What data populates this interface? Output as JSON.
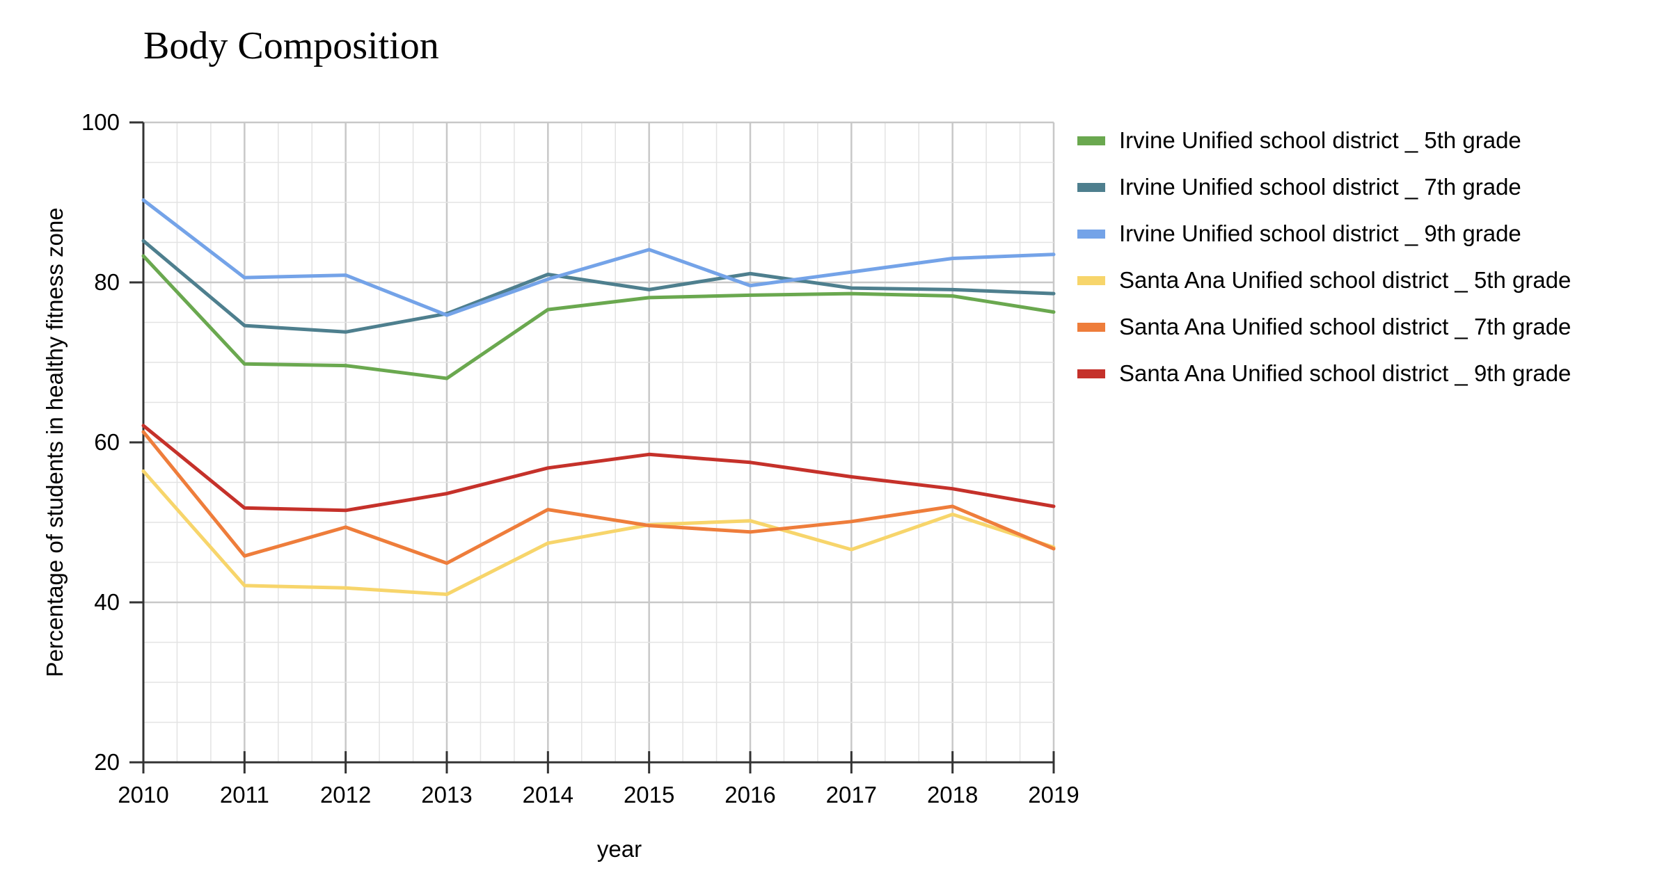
{
  "chart_data": {
    "type": "line",
    "title": "Body Composition",
    "xlabel": "year",
    "ylabel": "Percentage of students in healthy fitness zone",
    "x": [
      2010,
      2011,
      2012,
      2013,
      2014,
      2015,
      2016,
      2017,
      2018,
      2019
    ],
    "x_tick_labels": [
      "2010",
      "2011",
      "2012",
      "2013",
      "2014",
      "2015",
      "2016",
      "2017",
      "2018",
      "2019"
    ],
    "y_ticks": [
      20,
      40,
      60,
      80,
      100
    ],
    "y_tick_labels": [
      "20",
      "40",
      "60",
      "80",
      "100"
    ],
    "ylim": [
      20,
      100
    ],
    "xlim": [
      2010,
      2019
    ],
    "grid": true,
    "legend_position": "right",
    "series": [
      {
        "name": "Irvine Unified school district _ 5th grade",
        "color": "#6aa84f",
        "values": [
          83.3,
          69.8,
          69.6,
          68.0,
          76.6,
          78.1,
          78.4,
          78.6,
          78.3,
          76.3
        ]
      },
      {
        "name": "Irvine Unified school district _ 7th grade",
        "color": "#4e7f8e",
        "values": [
          85.2,
          74.6,
          73.8,
          76.1,
          81.0,
          79.1,
          81.1,
          79.3,
          79.1,
          78.6
        ]
      },
      {
        "name": "Irvine Unified school district _ 9th grade",
        "color": "#74a3e8",
        "values": [
          90.3,
          80.6,
          80.9,
          75.9,
          80.4,
          84.1,
          79.6,
          81.3,
          83.0,
          83.5
        ]
      },
      {
        "name": "Santa Ana Unified school district _ 5th grade",
        "color": "#f7d56b",
        "values": [
          56.4,
          42.1,
          41.8,
          41.0,
          47.4,
          49.7,
          50.2,
          46.6,
          51.0,
          46.9
        ]
      },
      {
        "name": "Santa Ana Unified school district _ 7th grade",
        "color": "#ee7d3b",
        "values": [
          61.3,
          45.8,
          49.4,
          44.9,
          51.6,
          49.6,
          48.8,
          50.1,
          52.0,
          46.7
        ]
      },
      {
        "name": "Santa Ana Unified school district _ 9th grade",
        "color": "#c5312a",
        "values": [
          62.1,
          51.8,
          51.5,
          53.6,
          56.8,
          58.5,
          57.5,
          55.7,
          54.2,
          52.0
        ]
      }
    ]
  }
}
